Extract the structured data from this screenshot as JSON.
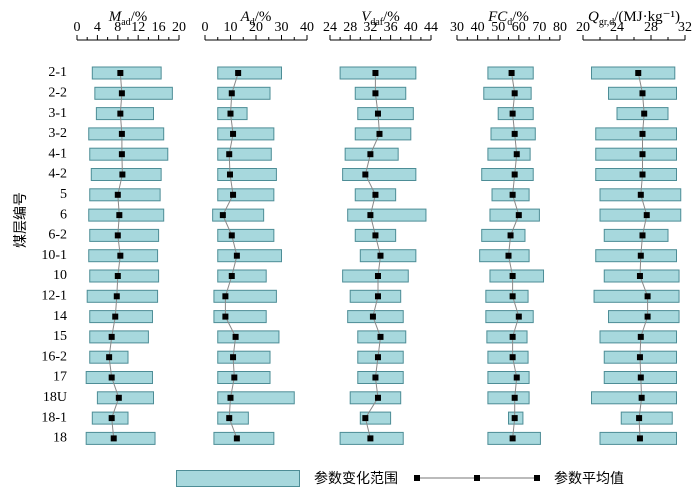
{
  "chart_data": {
    "type": "range-bar",
    "y_axis_label": "煤层编号",
    "seams": [
      "2-1",
      "2-2",
      "3-1",
      "3-2",
      "4-1",
      "4-2",
      "5",
      "6",
      "6-2",
      "10-1",
      "10",
      "12-1",
      "14",
      "15",
      "16-2",
      "17",
      "18U",
      "18-1",
      "18"
    ],
    "panels": [
      {
        "title_main": "M",
        "title_sub": "ad",
        "title_unit": "/%",
        "xlim": [
          0,
          20
        ],
        "ticks": [
          "0",
          "4",
          "8",
          "12",
          "16",
          "20"
        ],
        "ranges": [
          [
            3,
            16.5
          ],
          [
            3.5,
            18.7
          ],
          [
            3.8,
            15
          ],
          [
            2.3,
            17
          ],
          [
            2.5,
            17.8
          ],
          [
            2.8,
            16.5
          ],
          [
            2.5,
            16.3
          ],
          [
            2.3,
            17
          ],
          [
            2.5,
            16
          ],
          [
            2.3,
            15.8
          ],
          [
            2.5,
            16
          ],
          [
            2,
            15.8
          ],
          [
            2.5,
            14.8
          ],
          [
            2.5,
            14
          ],
          [
            2.5,
            10
          ],
          [
            1.8,
            14.8
          ],
          [
            4,
            15
          ],
          [
            3,
            10
          ],
          [
            1.8,
            15.3
          ]
        ],
        "means": [
          8.5,
          8.8,
          8.5,
          8.8,
          8.8,
          8.9,
          8,
          8.3,
          8,
          8.5,
          8,
          7.8,
          7.5,
          6.8,
          6.3,
          6.8,
          8.2,
          6.8,
          7.2
        ]
      },
      {
        "title_main": "A",
        "title_sub": "d",
        "title_unit": "/%",
        "xlim": [
          0,
          40
        ],
        "ticks": [
          "0",
          "10",
          "20",
          "30",
          "40"
        ],
        "ranges": [
          [
            5,
            30
          ],
          [
            5,
            25.5
          ],
          [
            5,
            16.5
          ],
          [
            5,
            27
          ],
          [
            5,
            26
          ],
          [
            5,
            28
          ],
          [
            5,
            27
          ],
          [
            3,
            23
          ],
          [
            5,
            27
          ],
          [
            5,
            30
          ],
          [
            5,
            24
          ],
          [
            3.5,
            28
          ],
          [
            3.5,
            24
          ],
          [
            5,
            29
          ],
          [
            5,
            25.5
          ],
          [
            5,
            25.5
          ],
          [
            5,
            35
          ],
          [
            5,
            17
          ],
          [
            3.5,
            27
          ]
        ],
        "means": [
          13,
          10.5,
          10,
          11,
          9.5,
          9.8,
          11,
          7,
          10.5,
          12.5,
          10.5,
          8,
          8,
          12,
          11,
          11.5,
          10,
          9.5,
          12.5
        ]
      },
      {
        "title_main": "V",
        "title_sub": "daf",
        "title_unit": "/%",
        "xlim": [
          24,
          44
        ],
        "ticks": [
          "24",
          "28",
          "32",
          "36",
          "40",
          "44"
        ],
        "ranges": [
          [
            26,
            41
          ],
          [
            29,
            39
          ],
          [
            29.5,
            40.5
          ],
          [
            29,
            40
          ],
          [
            27,
            37.5
          ],
          [
            26.5,
            41
          ],
          [
            29,
            37
          ],
          [
            27.5,
            43
          ],
          [
            29,
            37
          ],
          [
            30,
            41
          ],
          [
            26.5,
            39.5
          ],
          [
            28,
            38
          ],
          [
            27.5,
            38.5
          ],
          [
            29.5,
            39
          ],
          [
            29.5,
            38.5
          ],
          [
            29.5,
            38.5
          ],
          [
            28,
            38
          ],
          [
            30,
            36
          ],
          [
            26,
            38.5
          ]
        ],
        "means": [
          33,
          33,
          33.5,
          33.8,
          32,
          31,
          33,
          32,
          33,
          34,
          33.5,
          33.5,
          32.5,
          34,
          33.5,
          33,
          33.5,
          31,
          32
        ]
      },
      {
        "title_main": "FC",
        "title_sub": "d",
        "title_unit": "/%",
        "xlim": [
          30,
          80
        ],
        "ticks": [
          "30",
          "40",
          "50",
          "60",
          "70",
          "80"
        ],
        "ranges": [
          [
            45,
            67
          ],
          [
            43,
            66
          ],
          [
            50,
            67
          ],
          [
            46.5,
            68
          ],
          [
            45,
            65.5
          ],
          [
            42,
            67
          ],
          [
            47,
            65
          ],
          [
            46,
            70
          ],
          [
            42,
            63
          ],
          [
            41,
            65
          ],
          [
            46,
            72
          ],
          [
            44,
            64.5
          ],
          [
            44,
            67
          ],
          [
            44.5,
            64
          ],
          [
            45,
            64.5
          ],
          [
            45,
            65
          ],
          [
            45,
            65
          ],
          [
            55,
            62
          ],
          [
            45,
            70.5
          ]
        ],
        "means": [
          56.5,
          58,
          57,
          58,
          59,
          58,
          57,
          60,
          56,
          55,
          57,
          57,
          60,
          57,
          57,
          59,
          58,
          58,
          57
        ]
      },
      {
        "title_main": "Q",
        "title_sub": "gr,d",
        "title_unit": "/(MJ·kg⁻¹)",
        "xlim": [
          20,
          32
        ],
        "ticks": [
          "20",
          "24",
          "28",
          "32"
        ],
        "ranges": [
          [
            21,
            30.8
          ],
          [
            23,
            31
          ],
          [
            24,
            30
          ],
          [
            21.5,
            31
          ],
          [
            21.5,
            31
          ],
          [
            21.5,
            31
          ],
          [
            22,
            31.5
          ],
          [
            22,
            31.5
          ],
          [
            22.5,
            30
          ],
          [
            21.5,
            31
          ],
          [
            22.5,
            31.3
          ],
          [
            21.3,
            31.3
          ],
          [
            23,
            31.3
          ],
          [
            22,
            31
          ],
          [
            22.5,
            31
          ],
          [
            22.5,
            31
          ],
          [
            21,
            31
          ],
          [
            24.5,
            30.5
          ],
          [
            22,
            31
          ]
        ],
        "means": [
          26.5,
          27,
          27.2,
          27,
          27,
          27,
          26.8,
          27.5,
          27,
          26.8,
          26.7,
          27.6,
          27.6,
          26.8,
          26.7,
          26.8,
          26.9,
          26.6,
          26.7
        ]
      }
    ]
  },
  "legend": {
    "range_label": "参数变化范围",
    "mean_label": "参数平均值"
  }
}
